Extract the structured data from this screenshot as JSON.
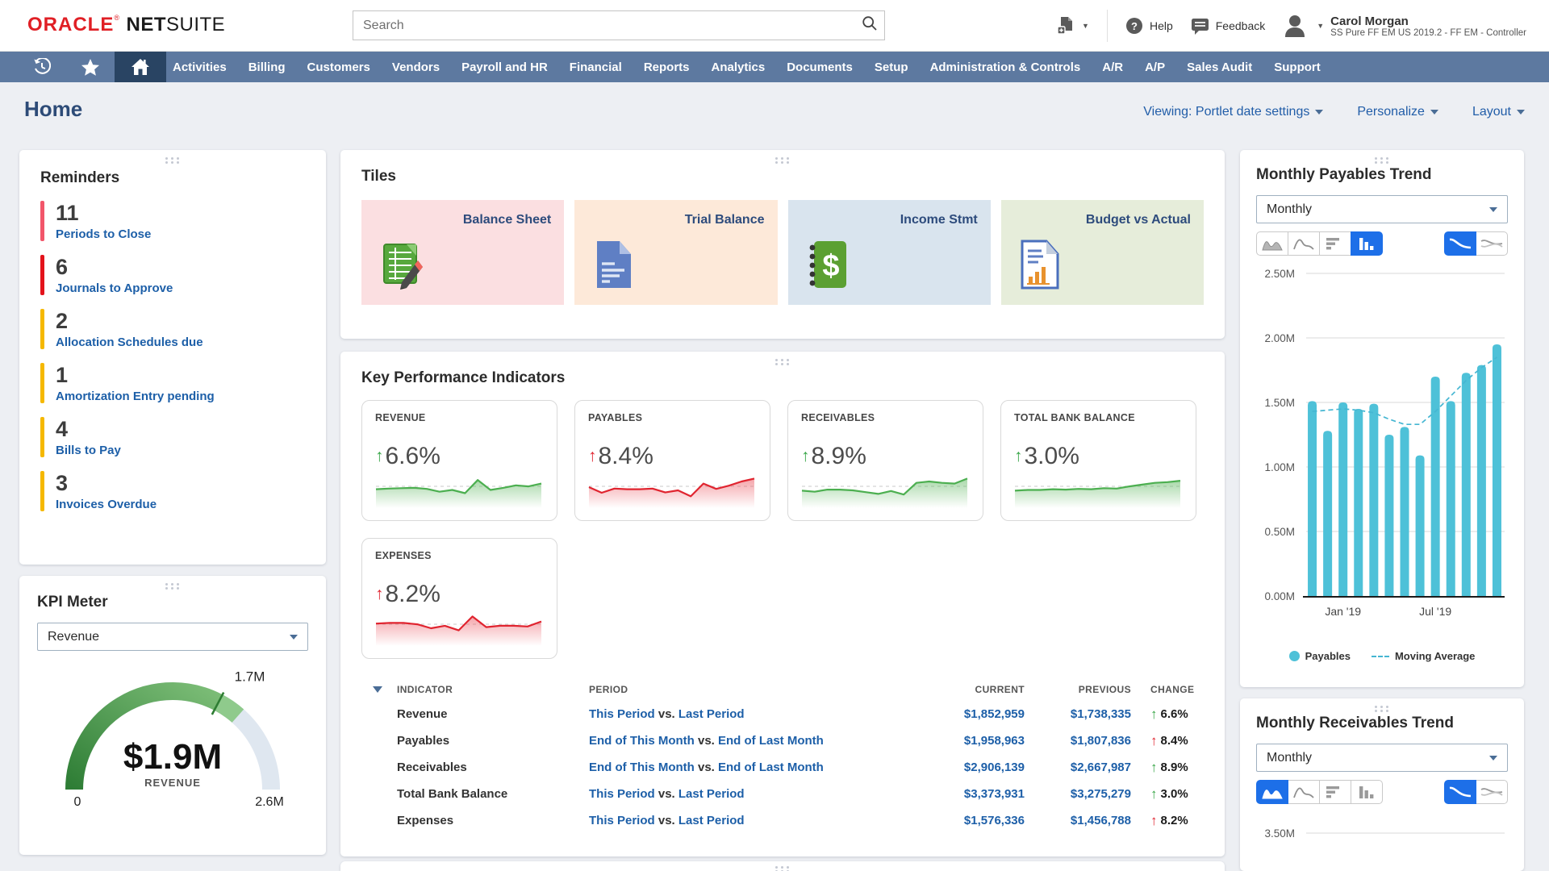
{
  "colors": {
    "oracle_red": "#e01f25",
    "nav_bg": "#5d79a0",
    "nav_active": "#294463",
    "link_blue": "#1d5fa8",
    "title_navy": "#2d4b77",
    "green": "#36a546",
    "red": "#e0242f",
    "gold": "#f5b800",
    "pink_red": "#f2566a",
    "bright_red": "#e3131b",
    "cyan": "#4ec1d8",
    "selected_blue": "#1d6fe8"
  },
  "header": {
    "logo_primary": "ORACLE",
    "logo_reg": "®",
    "logo_bold": "NET",
    "logo_light": "SUITE",
    "search": {
      "placeholder": "Search"
    },
    "help_label": "Help",
    "feedback_label": "Feedback",
    "user_name": "Carol Morgan",
    "user_role": "SS Pure FF EM US 2019.2 - FF EM - Controller"
  },
  "nav": {
    "items": [
      "Activities",
      "Billing",
      "Customers",
      "Vendors",
      "Payroll and HR",
      "Financial",
      "Reports",
      "Analytics",
      "Documents",
      "Setup",
      "Administration & Controls",
      "A/R",
      "A/P",
      "Sales Audit",
      "Support"
    ]
  },
  "page": {
    "title": "Home",
    "viewing_label": "Viewing: Portlet date settings",
    "personalize_label": "Personalize",
    "layout_label": "Layout"
  },
  "reminders": {
    "title": "Reminders",
    "items": [
      {
        "count": "11",
        "label": "Periods to Close",
        "color": "#f2566a"
      },
      {
        "count": "6",
        "label": "Journals to Approve",
        "color": "#e3131b"
      },
      {
        "count": "2",
        "label": "Allocation Schedules due",
        "color": "#f5b800"
      },
      {
        "count": "1",
        "label": "Amortization Entry pending",
        "color": "#f5b800"
      },
      {
        "count": "4",
        "label": "Bills to Pay",
        "color": "#f5b800"
      },
      {
        "count": "3",
        "label": "Invoices Overdue",
        "color": "#f5b800"
      }
    ]
  },
  "tiles": {
    "title": "Tiles",
    "items": [
      {
        "label": "Balance Sheet",
        "bg": "#fbdfe1",
        "icon": "spreadsheet-pencil-icon"
      },
      {
        "label": "Trial Balance",
        "bg": "#fde9d9",
        "icon": "document-icon"
      },
      {
        "label": "Income Stmt",
        "bg": "#d9e4ee",
        "icon": "ledger-dollar-icon"
      },
      {
        "label": "Budget vs Actual",
        "bg": "#e6edda",
        "icon": "chart-document-icon"
      }
    ]
  },
  "kpi": {
    "title": "Key Performance Indicators",
    "cards": [
      {
        "label": "REVENUE",
        "change": "6.6%",
        "direction": "up",
        "color": "green",
        "spark": [
          0.44,
          0.46,
          0.47,
          0.48,
          0.45,
          0.37,
          0.42,
          0.33,
          0.7,
          0.42,
          0.48,
          0.55,
          0.52,
          0.6
        ]
      },
      {
        "label": "PAYABLES",
        "change": "8.4%",
        "direction": "up",
        "color": "red",
        "spark": [
          0.5,
          0.34,
          0.46,
          0.44,
          0.44,
          0.46,
          0.35,
          0.41,
          0.24,
          0.6,
          0.45,
          0.54,
          0.66,
          0.74
        ]
      },
      {
        "label": "RECEIVABLES",
        "change": "8.9%",
        "direction": "up",
        "color": "green",
        "spark": [
          0.4,
          0.37,
          0.43,
          0.43,
          0.41,
          0.36,
          0.31,
          0.39,
          0.29,
          0.62,
          0.66,
          0.62,
          0.6,
          0.74
        ]
      },
      {
        "label": "TOTAL BANK BALANCE",
        "change": "3.0%",
        "direction": "up",
        "color": "green",
        "spark": [
          0.4,
          0.42,
          0.42,
          0.44,
          0.43,
          0.45,
          0.44,
          0.47,
          0.46,
          0.52,
          0.57,
          0.62,
          0.64,
          0.68
        ]
      },
      {
        "label": "EXPENSES",
        "change": "8.2%",
        "direction": "up",
        "color": "red",
        "spark": [
          0.54,
          0.56,
          0.56,
          0.52,
          0.41,
          0.48,
          0.35,
          0.74,
          0.44,
          0.48,
          0.48,
          0.46,
          0.6
        ]
      }
    ],
    "table": {
      "headers": [
        "INDICATOR",
        "PERIOD",
        "CURRENT",
        "PREVIOUS",
        "CHANGE"
      ],
      "vs_label": "vs.",
      "rows": [
        {
          "indicator": "Revenue",
          "period_a": "This Period",
          "period_b": "Last Period",
          "current": "$1,852,959",
          "previous": "$1,738,335",
          "change": "6.6%",
          "color": "green"
        },
        {
          "indicator": "Payables",
          "period_a": "End of This Month",
          "period_b": "End of Last Month",
          "current": "$1,958,963",
          "previous": "$1,807,836",
          "change": "8.4%",
          "color": "red"
        },
        {
          "indicator": "Receivables",
          "period_a": "End of This Month",
          "period_b": "End of Last Month",
          "current": "$2,906,139",
          "previous": "$2,667,987",
          "change": "8.9%",
          "color": "green"
        },
        {
          "indicator": "Total Bank Balance",
          "period_a": "This Period",
          "period_b": "Last Period",
          "current": "$3,373,931",
          "previous": "$3,275,279",
          "change": "3.0%",
          "color": "green"
        },
        {
          "indicator": "Expenses",
          "period_a": "This Period",
          "period_b": "Last Period",
          "current": "$1,576,336",
          "previous": "$1,456,788",
          "change": "8.2%",
          "color": "red"
        }
      ]
    }
  },
  "kpi_meter": {
    "title": "KPI Meter",
    "select_value": "Revenue",
    "chart_data": {
      "type": "gauge",
      "min": 0,
      "max": 2600000,
      "value": 1900000,
      "threshold": 1700000,
      "value_label": "$1.9M",
      "metric_label": "REVENUE",
      "min_label": "0",
      "max_label": "2.6M",
      "threshold_label": "1.7M"
    }
  },
  "payables_trend": {
    "title": "Monthly Payables Trend",
    "select_value": "Monthly",
    "buttons": [
      {
        "name": "area-chart-button",
        "selected": false
      },
      {
        "name": "line-chart-button",
        "selected": false
      },
      {
        "name": "hbar-chart-button",
        "selected": false
      },
      {
        "name": "vbar-chart-button",
        "selected": true
      }
    ],
    "toggles": [
      {
        "name": "smooth-line-button",
        "selected": true
      },
      {
        "name": "multi-line-button",
        "selected": false
      }
    ],
    "chart_data": {
      "type": "bar",
      "unit": "M",
      "values": [
        1.51,
        1.28,
        1.5,
        1.45,
        1.49,
        1.25,
        1.31,
        1.09,
        1.7,
        1.51,
        1.73,
        1.79,
        1.95
      ],
      "moving_average": [
        1.43,
        1.44,
        1.45,
        1.44,
        1.42,
        1.37,
        1.33,
        1.33,
        1.43,
        1.55,
        1.67,
        1.77,
        1.85
      ],
      "ylim": [
        0,
        2.5
      ],
      "yticks": [
        "2.50M",
        "2.00M",
        "1.50M",
        "1.00M",
        "0.50M",
        "0.00M"
      ],
      "x_labels": [
        {
          "text": "Jan '19",
          "index": 2
        },
        {
          "text": "Jul '19",
          "index": 8
        }
      ],
      "legend": [
        "Payables",
        "Moving Average"
      ]
    }
  },
  "receivables_trend": {
    "title": "Monthly Receivables Trend",
    "select_value": "Monthly",
    "buttons": [
      {
        "name": "area-chart-button",
        "selected": true
      },
      {
        "name": "line-chart-button",
        "selected": false
      },
      {
        "name": "hbar-chart-button",
        "selected": false
      },
      {
        "name": "vbar-chart-button",
        "selected": false
      }
    ],
    "toggles": [
      {
        "name": "smooth-line-button",
        "selected": true
      },
      {
        "name": "multi-line-button",
        "selected": false
      }
    ],
    "chart_data": {
      "type": "area",
      "first_ytick": "3.50M"
    }
  }
}
